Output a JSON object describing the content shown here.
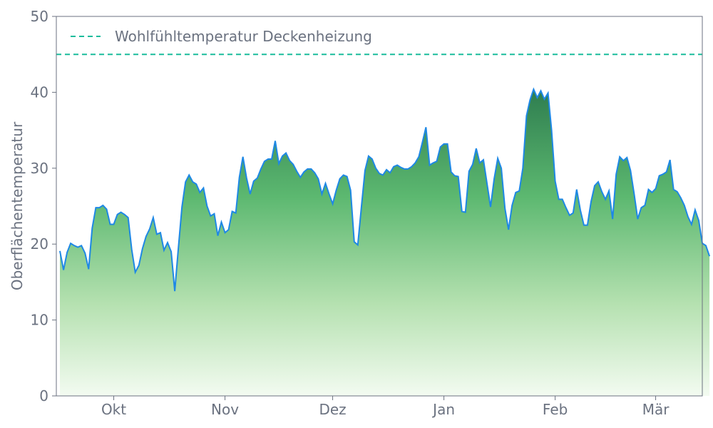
{
  "chart_data": {
    "type": "area",
    "title": "",
    "xlabel": "",
    "ylabel": "Oberflächentemperatur",
    "ylim": [
      0,
      50
    ],
    "yticks": [
      0,
      10,
      20,
      30,
      40,
      50
    ],
    "x_start": "2021-09-15",
    "x_end": "2022-03-14",
    "xticks": [
      {
        "date": "2021-10-01",
        "label": "Okt"
      },
      {
        "date": "2021-11-01",
        "label": "Nov"
      },
      {
        "date": "2021-12-01",
        "label": "Dez"
      },
      {
        "date": "2022-01-01",
        "label": "Jan"
      },
      {
        "date": "2022-02-01",
        "label": "Feb"
      },
      {
        "date": "2022-03-01",
        "label": "Mär"
      }
    ],
    "grid": false,
    "legend_position": "top-left",
    "reference_line": {
      "name": "Wohlfühltemperatur Deckenheizung",
      "y": 45,
      "style": "dashed",
      "color": "#1abc9c"
    },
    "series": [
      {
        "line_color": "#1e88e5",
        "fill_gradient": [
          "#2e7d4f",
          "#f3fbf1"
        ],
        "points": [
          [
            "2021-09-16",
            19.1
          ],
          [
            "2021-09-17",
            16.6
          ],
          [
            "2021-09-18",
            18.9
          ],
          [
            "2021-09-19",
            20.1
          ],
          [
            "2021-09-20",
            19.8
          ],
          [
            "2021-09-21",
            19.6
          ],
          [
            "2021-09-22",
            19.8
          ],
          [
            "2021-09-23",
            18.8
          ],
          [
            "2021-09-24",
            16.7
          ],
          [
            "2021-09-25",
            22.1
          ],
          [
            "2021-09-26",
            24.8
          ],
          [
            "2021-09-27",
            24.8
          ],
          [
            "2021-09-28",
            25.1
          ],
          [
            "2021-09-29",
            24.6
          ],
          [
            "2021-09-30",
            22.6
          ],
          [
            "2021-10-01",
            22.6
          ],
          [
            "2021-10-02",
            23.9
          ],
          [
            "2021-10-03",
            24.2
          ],
          [
            "2021-10-04",
            23.9
          ],
          [
            "2021-10-05",
            23.5
          ],
          [
            "2021-10-06",
            19.3
          ],
          [
            "2021-10-07",
            16.3
          ],
          [
            "2021-10-08",
            17.2
          ],
          [
            "2021-10-09",
            19.4
          ],
          [
            "2021-10-10",
            21.0
          ],
          [
            "2021-10-11",
            22.0
          ],
          [
            "2021-10-12",
            23.5
          ],
          [
            "2021-10-13",
            21.3
          ],
          [
            "2021-10-14",
            21.5
          ],
          [
            "2021-10-15",
            19.2
          ],
          [
            "2021-10-16",
            20.2
          ],
          [
            "2021-10-17",
            19.0
          ],
          [
            "2021-10-18",
            13.8
          ],
          [
            "2021-10-19",
            19.4
          ],
          [
            "2021-10-20",
            24.9
          ],
          [
            "2021-10-21",
            28.2
          ],
          [
            "2021-10-22",
            29.1
          ],
          [
            "2021-10-23",
            28.2
          ],
          [
            "2021-10-24",
            27.9
          ],
          [
            "2021-10-25",
            26.8
          ],
          [
            "2021-10-26",
            27.4
          ],
          [
            "2021-10-27",
            25.0
          ],
          [
            "2021-10-28",
            23.7
          ],
          [
            "2021-10-29",
            24.0
          ],
          [
            "2021-10-30",
            21.1
          ],
          [
            "2021-10-31",
            22.9
          ],
          [
            "2021-11-01",
            21.5
          ],
          [
            "2021-11-02",
            21.9
          ],
          [
            "2021-11-03",
            24.3
          ],
          [
            "2021-11-04",
            24.1
          ],
          [
            "2021-11-05",
            28.8
          ],
          [
            "2021-11-06",
            31.5
          ],
          [
            "2021-11-07",
            28.7
          ],
          [
            "2021-11-08",
            26.6
          ],
          [
            "2021-11-09",
            28.3
          ],
          [
            "2021-11-10",
            28.7
          ],
          [
            "2021-11-11",
            29.9
          ],
          [
            "2021-11-12",
            30.9
          ],
          [
            "2021-11-13",
            31.2
          ],
          [
            "2021-11-14",
            31.2
          ],
          [
            "2021-11-15",
            33.6
          ],
          [
            "2021-11-16",
            30.6
          ],
          [
            "2021-11-17",
            31.6
          ],
          [
            "2021-11-18",
            32.0
          ],
          [
            "2021-11-19",
            31.0
          ],
          [
            "2021-11-20",
            30.5
          ],
          [
            "2021-11-21",
            29.6
          ],
          [
            "2021-11-22",
            28.8
          ],
          [
            "2021-11-23",
            29.5
          ],
          [
            "2021-11-24",
            29.9
          ],
          [
            "2021-11-25",
            29.9
          ],
          [
            "2021-11-26",
            29.4
          ],
          [
            "2021-11-27",
            28.6
          ],
          [
            "2021-11-28",
            26.6
          ],
          [
            "2021-11-29",
            28.0
          ],
          [
            "2021-11-30",
            26.6
          ],
          [
            "2021-12-01",
            25.3
          ],
          [
            "2021-12-02",
            27.1
          ],
          [
            "2021-12-03",
            28.6
          ],
          [
            "2021-12-04",
            29.1
          ],
          [
            "2021-12-05",
            28.9
          ],
          [
            "2021-12-06",
            27.1
          ],
          [
            "2021-12-07",
            20.3
          ],
          [
            "2021-12-08",
            19.9
          ],
          [
            "2021-12-09",
            24.8
          ],
          [
            "2021-12-10",
            29.7
          ],
          [
            "2021-12-11",
            31.6
          ],
          [
            "2021-12-12",
            31.2
          ],
          [
            "2021-12-13",
            30.0
          ],
          [
            "2021-12-14",
            29.3
          ],
          [
            "2021-12-15",
            29.1
          ],
          [
            "2021-12-16",
            29.8
          ],
          [
            "2021-12-17",
            29.4
          ],
          [
            "2021-12-18",
            30.2
          ],
          [
            "2021-12-19",
            30.4
          ],
          [
            "2021-12-20",
            30.1
          ],
          [
            "2021-12-21",
            29.9
          ],
          [
            "2021-12-22",
            29.9
          ],
          [
            "2021-12-23",
            30.2
          ],
          [
            "2021-12-24",
            30.7
          ],
          [
            "2021-12-25",
            31.5
          ],
          [
            "2021-12-26",
            33.4
          ],
          [
            "2021-12-27",
            35.4
          ],
          [
            "2021-12-28",
            30.4
          ],
          [
            "2021-12-29",
            30.7
          ],
          [
            "2021-12-30",
            30.9
          ],
          [
            "2021-12-31",
            32.8
          ],
          [
            "2022-01-01",
            33.2
          ],
          [
            "2022-01-02",
            33.2
          ],
          [
            "2022-01-03",
            29.5
          ],
          [
            "2022-01-04",
            29.0
          ],
          [
            "2022-01-05",
            28.9
          ],
          [
            "2022-01-06",
            24.3
          ],
          [
            "2022-01-07",
            24.2
          ],
          [
            "2022-01-08",
            29.6
          ],
          [
            "2022-01-09",
            30.5
          ],
          [
            "2022-01-10",
            32.6
          ],
          [
            "2022-01-11",
            30.7
          ],
          [
            "2022-01-12",
            31.1
          ],
          [
            "2022-01-13",
            28.0
          ],
          [
            "2022-01-14",
            24.9
          ],
          [
            "2022-01-15",
            28.6
          ],
          [
            "2022-01-16",
            31.3
          ],
          [
            "2022-01-17",
            30.0
          ],
          [
            "2022-01-18",
            24.7
          ],
          [
            "2022-01-19",
            21.9
          ],
          [
            "2022-01-20",
            25.1
          ],
          [
            "2022-01-21",
            26.8
          ],
          [
            "2022-01-22",
            27.0
          ],
          [
            "2022-01-23",
            30.0
          ],
          [
            "2022-01-24",
            36.9
          ],
          [
            "2022-01-25",
            39.0
          ],
          [
            "2022-01-26",
            40.4
          ],
          [
            "2022-01-27",
            39.3
          ],
          [
            "2022-01-28",
            40.2
          ],
          [
            "2022-01-29",
            39.1
          ],
          [
            "2022-01-30",
            39.9
          ],
          [
            "2022-01-31",
            35.0
          ],
          [
            "2022-02-01",
            28.3
          ],
          [
            "2022-02-02",
            25.9
          ],
          [
            "2022-02-03",
            25.9
          ],
          [
            "2022-02-04",
            24.8
          ],
          [
            "2022-02-05",
            23.8
          ],
          [
            "2022-02-06",
            24.1
          ],
          [
            "2022-02-07",
            27.2
          ],
          [
            "2022-02-08",
            24.5
          ],
          [
            "2022-02-09",
            22.5
          ],
          [
            "2022-02-10",
            22.5
          ],
          [
            "2022-02-11",
            25.6
          ],
          [
            "2022-02-12",
            27.7
          ],
          [
            "2022-02-13",
            28.2
          ],
          [
            "2022-02-14",
            26.9
          ],
          [
            "2022-02-15",
            25.9
          ],
          [
            "2022-02-16",
            27.0
          ],
          [
            "2022-02-17",
            23.3
          ],
          [
            "2022-02-18",
            29.2
          ],
          [
            "2022-02-19",
            31.5
          ],
          [
            "2022-02-20",
            31.0
          ],
          [
            "2022-02-21",
            31.4
          ],
          [
            "2022-02-22",
            29.7
          ],
          [
            "2022-02-23",
            26.6
          ],
          [
            "2022-02-24",
            23.3
          ],
          [
            "2022-02-25",
            24.8
          ],
          [
            "2022-02-26",
            25.1
          ],
          [
            "2022-02-27",
            27.2
          ],
          [
            "2022-02-28",
            26.8
          ],
          [
            "2022-03-01",
            27.3
          ],
          [
            "2022-03-02",
            29.0
          ],
          [
            "2022-03-03",
            29.2
          ],
          [
            "2022-03-04",
            29.5
          ],
          [
            "2022-03-05",
            31.1
          ],
          [
            "2022-03-06",
            27.2
          ],
          [
            "2022-03-07",
            26.9
          ],
          [
            "2022-03-08",
            26.1
          ],
          [
            "2022-03-09",
            25.1
          ],
          [
            "2022-03-10",
            23.6
          ],
          [
            "2022-03-11",
            22.6
          ],
          [
            "2022-03-12",
            24.5
          ],
          [
            "2022-03-13",
            23.1
          ],
          [
            "2022-03-14",
            20.1
          ],
          [
            "2022-03-15",
            19.8
          ],
          [
            "2022-03-16",
            18.4
          ]
        ]
      }
    ]
  }
}
